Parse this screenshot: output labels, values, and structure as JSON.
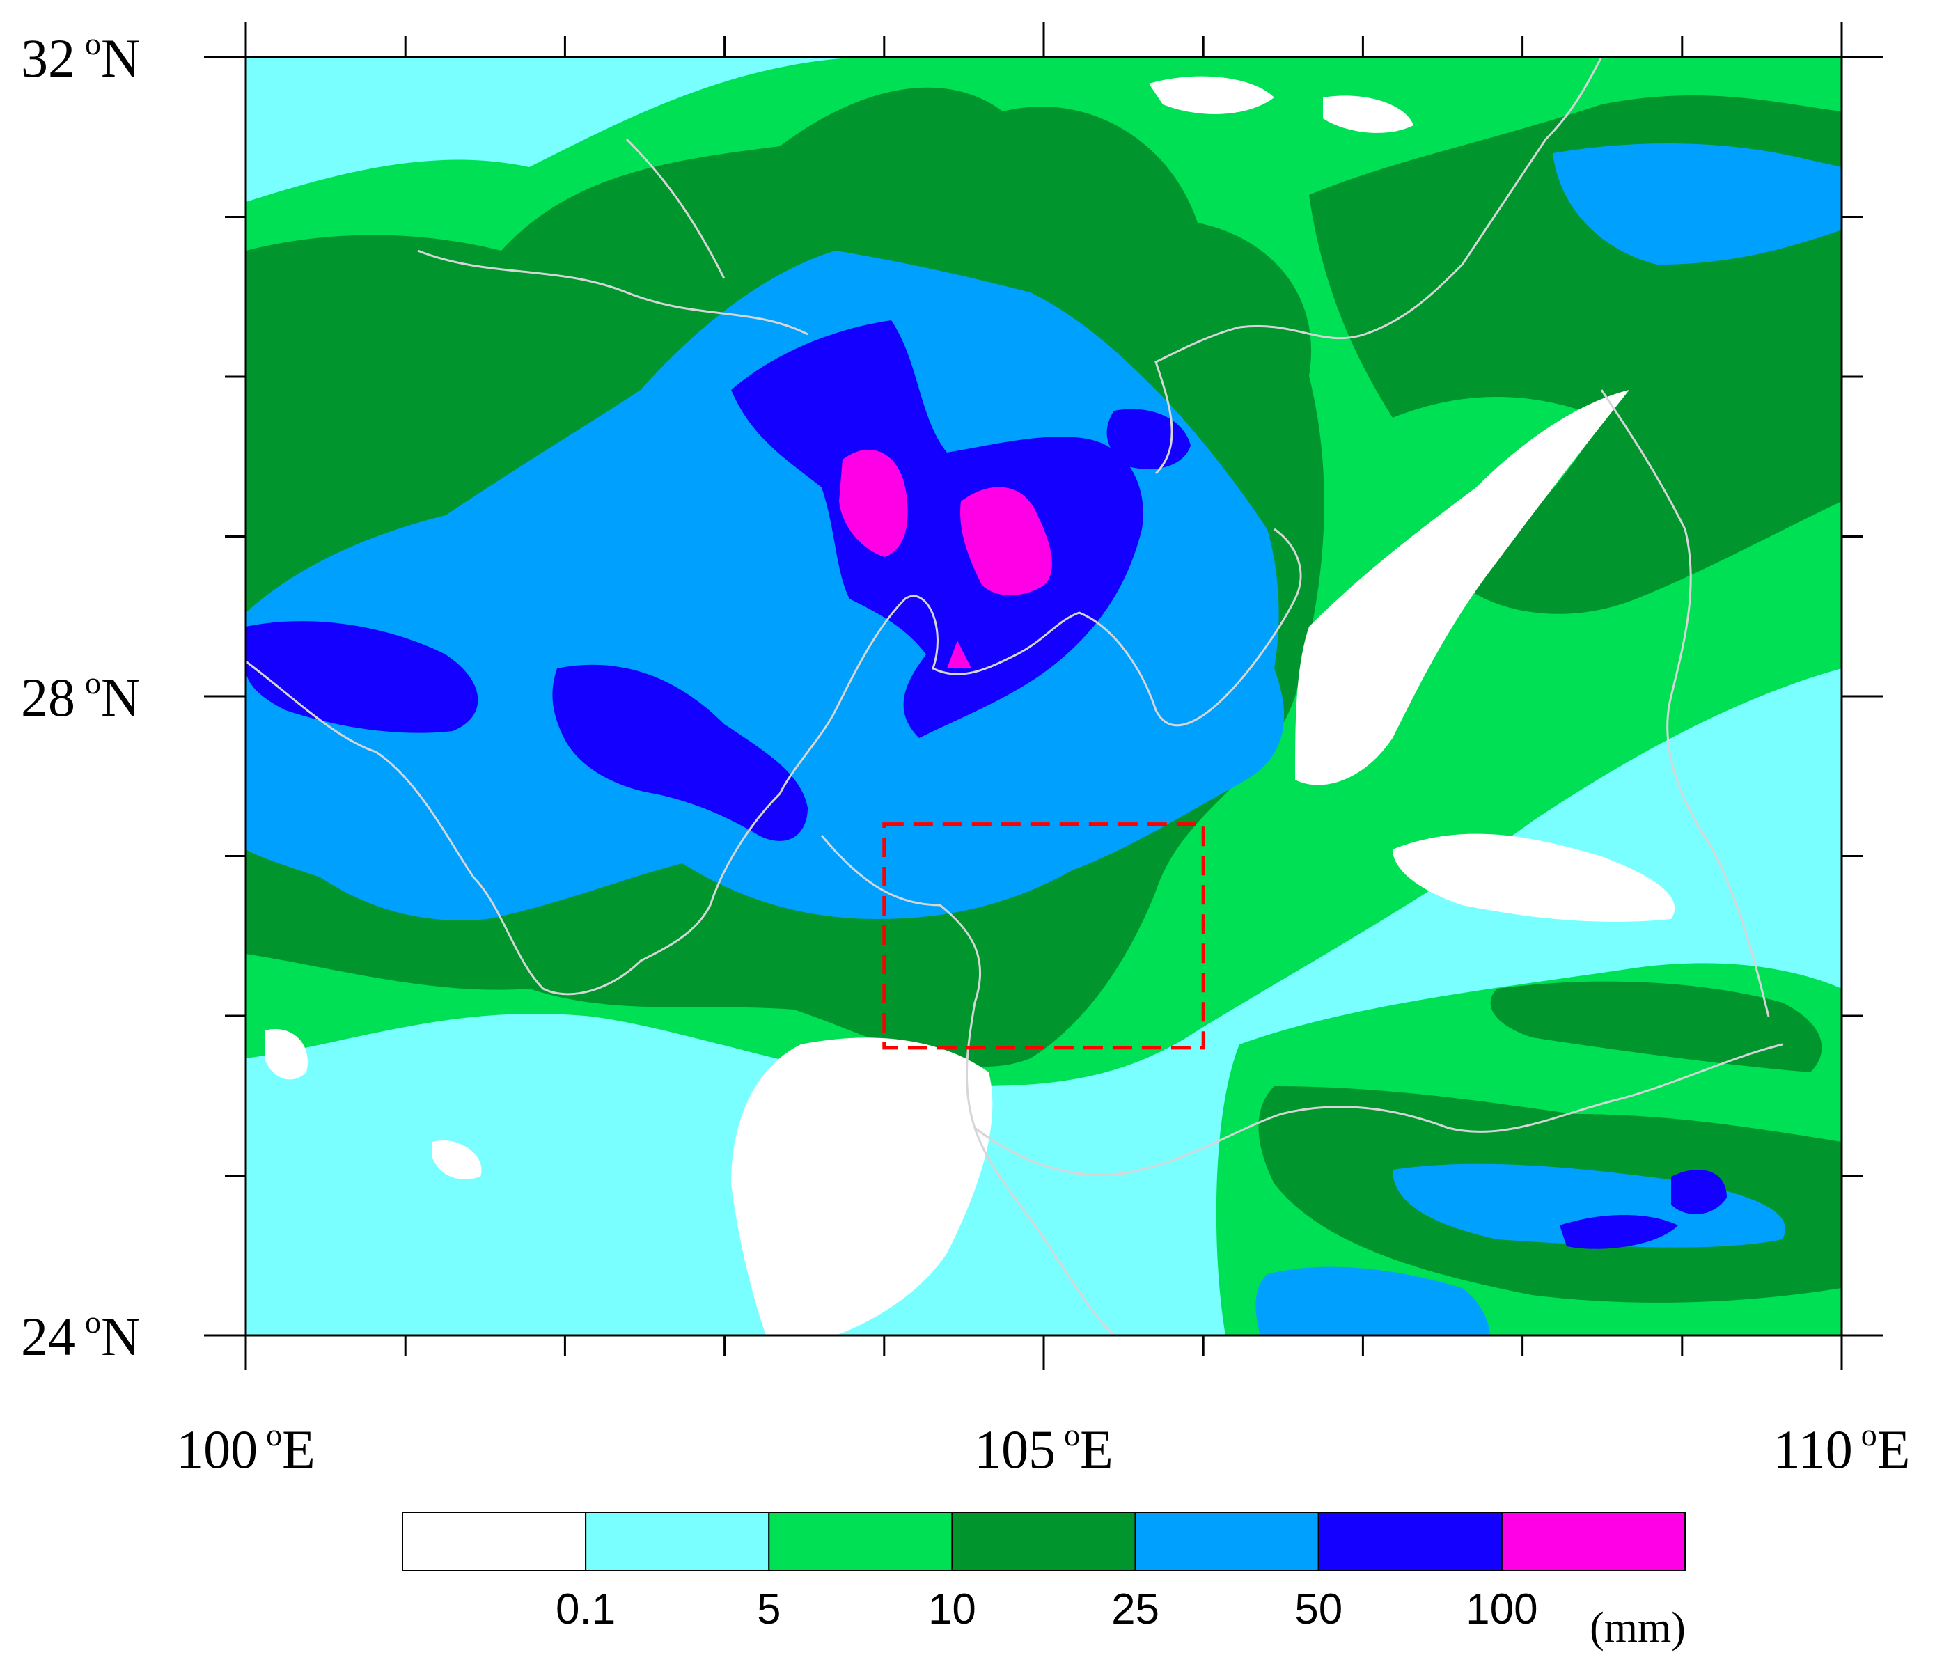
{
  "map": {
    "lat_labels": [
      {
        "value": 32,
        "text": "32",
        "suffix": "N"
      },
      {
        "value": 28,
        "text": "28",
        "suffix": "N"
      },
      {
        "value": 24,
        "text": "24",
        "suffix": "N"
      }
    ],
    "lon_labels": [
      {
        "value": 100,
        "text": "100",
        "suffix": "E"
      },
      {
        "value": 105,
        "text": "105",
        "suffix": "E"
      },
      {
        "value": 110,
        "text": "110",
        "suffix": "E"
      }
    ],
    "degree_symbol": "o",
    "extent": {
      "lon_min": 100,
      "lon_max": 110,
      "lat_min": 24,
      "lat_max": 32
    },
    "minor_tick_step_deg": 1,
    "highlight_box": {
      "lon_min": 104,
      "lon_max": 106,
      "lat_min": 25.8,
      "lat_max": 27.2,
      "color": "#ff0000",
      "style": "dashed"
    }
  },
  "colorbar": {
    "colors": [
      "#ffffff",
      "#79ffff",
      "#00e054",
      "#00962d",
      "#00a0ff",
      "#1400ff",
      "#ff00e6"
    ],
    "labels": [
      "0.1",
      "5",
      "10",
      "25",
      "50",
      "100"
    ],
    "unit": "(mm)"
  },
  "field_colors": {
    "white": "#ffffff",
    "cyan": "#79ffff",
    "green": "#00e054",
    "darkgreen": "#00962d",
    "blue": "#00a0ff",
    "darkblue": "#1400ff",
    "magenta": "#ff00e6",
    "borders": "#d6d6d6"
  }
}
